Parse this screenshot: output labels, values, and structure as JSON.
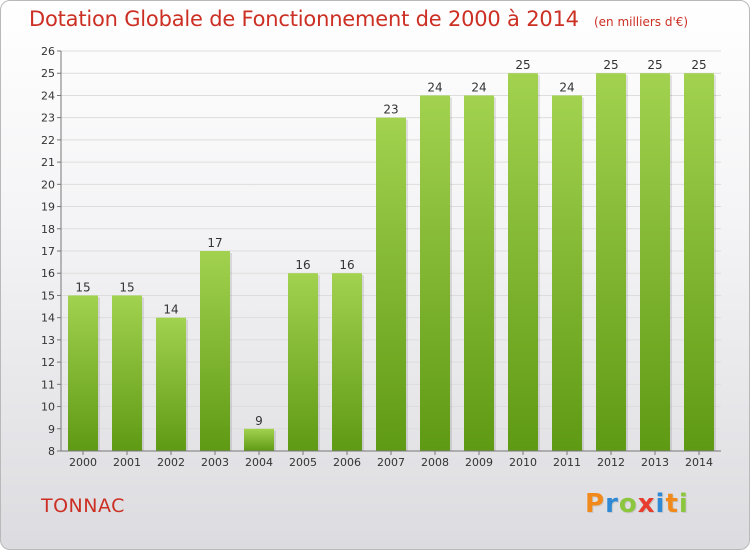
{
  "header": {
    "title": "Dotation Globale de Fonctionnement de 2000 à 2014",
    "subtitle": "(en milliers d'€)"
  },
  "footer": {
    "commune": "TONNAC",
    "brand": "Proxiti",
    "brand_colors": [
      "#f28a1b",
      "#2f89d4",
      "#8cc63f",
      "#e63d2e",
      "#2f89d4",
      "#f28a1b",
      "#8cc63f"
    ]
  },
  "chart_data": {
    "type": "bar",
    "title": "Dotation Globale de Fonctionnement de 2000 à 2014",
    "subtitle": "(en milliers d'€)",
    "categories": [
      "2000",
      "2001",
      "2002",
      "2003",
      "2004",
      "2005",
      "2006",
      "2007",
      "2008",
      "2009",
      "2010",
      "2011",
      "2012",
      "2013",
      "2014"
    ],
    "values": [
      15,
      15,
      14,
      17,
      9,
      16,
      16,
      23,
      24,
      24,
      25,
      24,
      25,
      25,
      25
    ],
    "ylim": [
      8,
      26
    ],
    "yticks": [
      "8",
      "9",
      "10",
      "11",
      "12",
      "13",
      "14",
      "15",
      "16",
      "17",
      "18",
      "19",
      "20",
      "21",
      "22",
      "23",
      "24",
      "25",
      "26"
    ],
    "grid": true,
    "data_labels": true,
    "colors": {
      "bar_top": "#a2d24f",
      "bar_bottom": "#5f9a14",
      "axis": "#777777",
      "grid": "#dddddd",
      "text": "#333333",
      "accent": "#cc2f23"
    }
  }
}
